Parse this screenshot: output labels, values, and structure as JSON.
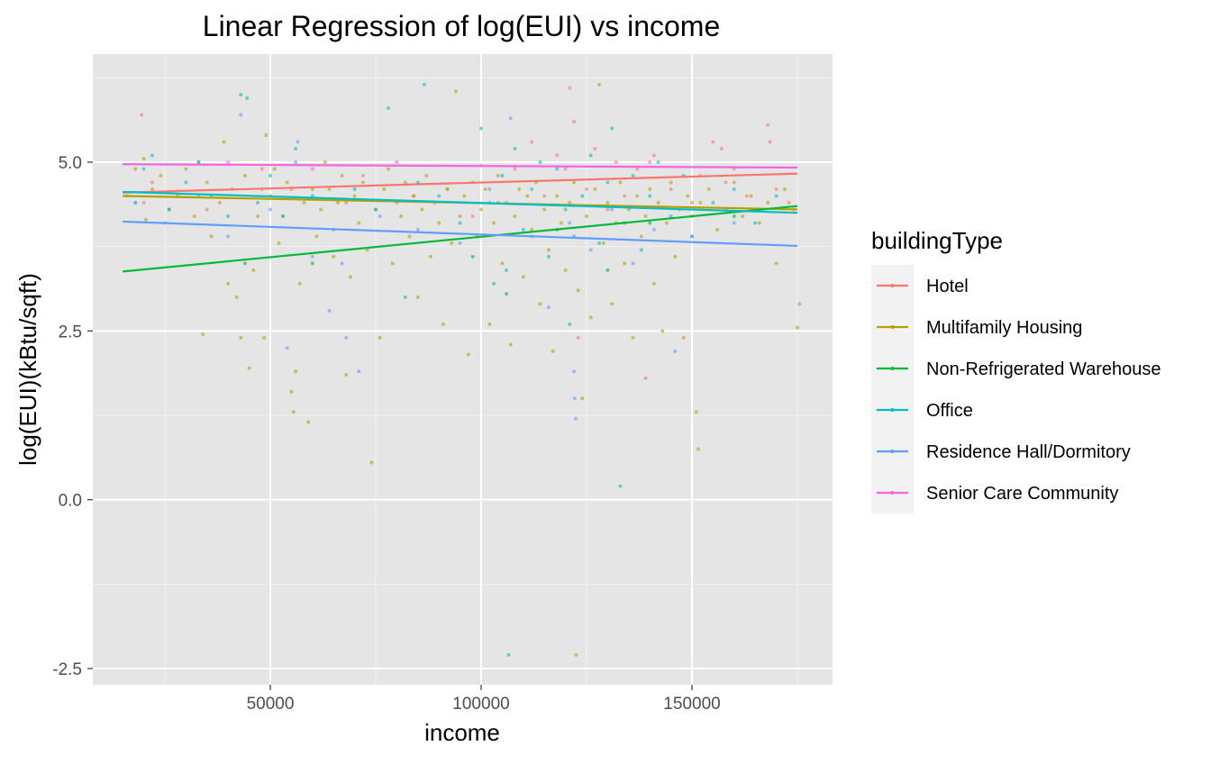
{
  "chart_data": {
    "type": "scatter",
    "title": "Linear Regression of log(EUI) vs income",
    "xlabel": "income",
    "ylabel": "log(EUI)(kBtu/sqft)",
    "xlim": [
      15000,
      175000
    ],
    "ylim": [
      -2.5,
      6.2
    ],
    "x_ticks": [
      50000,
      100000,
      150000
    ],
    "x_tick_labels": [
      "50000",
      "100000",
      "150000"
    ],
    "y_ticks": [
      -2.5,
      0.0,
      2.5,
      5.0
    ],
    "y_tick_labels": [
      "-2.5",
      "0.0",
      "2.5",
      "5.0"
    ],
    "grid": true,
    "background": "#e5e5e5",
    "legend": {
      "title": "buildingType",
      "position": "right",
      "entries": [
        "Hotel",
        "Multifamily Housing",
        "Non-Refrigerated Warehouse",
        "Office",
        "Residence Hall/Dormitory",
        "Senior Care Community"
      ]
    },
    "series": [
      {
        "name": "Hotel",
        "color": "#F8766D",
        "fit_line": [
          [
            15000,
            4.55
          ],
          [
            175000,
            4.83
          ]
        ],
        "points": [
          [
            19500,
            5.7
          ],
          [
            20000,
            4.4
          ],
          [
            22000,
            4.7
          ],
          [
            35000,
            4.3
          ],
          [
            48000,
            4.9
          ],
          [
            55000,
            4.6
          ],
          [
            68000,
            4.4
          ],
          [
            72000,
            4.8
          ],
          [
            84000,
            4.5
          ],
          [
            92000,
            4.6
          ],
          [
            98000,
            4.2
          ],
          [
            104000,
            4.4
          ],
          [
            108000,
            4.9
          ],
          [
            112000,
            5.3
          ],
          [
            115000,
            4.5
          ],
          [
            118000,
            5.1
          ],
          [
            121000,
            6.1
          ],
          [
            122000,
            5.6
          ],
          [
            123000,
            2.4
          ],
          [
            125000,
            4.6
          ],
          [
            127000,
            5.2
          ],
          [
            130000,
            4.3
          ],
          [
            132000,
            5.0
          ],
          [
            134000,
            4.5
          ],
          [
            137000,
            4.9
          ],
          [
            139000,
            1.8
          ],
          [
            141000,
            5.1
          ],
          [
            145000,
            4.6
          ],
          [
            150000,
            4.4
          ],
          [
            152000,
            4.8
          ],
          [
            155000,
            5.3
          ],
          [
            157000,
            5.2
          ],
          [
            158000,
            4.7
          ],
          [
            160000,
            4.9
          ],
          [
            163000,
            4.5
          ],
          [
            168000,
            5.55
          ],
          [
            168500,
            5.3
          ],
          [
            170000,
            4.6
          ],
          [
            173000,
            4.4
          ]
        ]
      },
      {
        "name": "Multifamily Housing",
        "color": "#B79F00",
        "fit_line": [
          [
            15000,
            4.5
          ],
          [
            175000,
            4.3
          ]
        ],
        "points": [
          [
            16000,
            4.5
          ],
          [
            18000,
            4.9
          ],
          [
            20000,
            5.05
          ],
          [
            20500,
            4.15
          ],
          [
            22000,
            4.6
          ],
          [
            24000,
            4.8
          ],
          [
            26000,
            4.3
          ],
          [
            28000,
            4.5
          ],
          [
            30000,
            4.9
          ],
          [
            32000,
            4.2
          ],
          [
            33000,
            5.0
          ],
          [
            34000,
            2.45
          ],
          [
            35000,
            4.7
          ],
          [
            36000,
            3.9
          ],
          [
            38000,
            4.4
          ],
          [
            39000,
            5.3
          ],
          [
            40000,
            3.2
          ],
          [
            41000,
            4.6
          ],
          [
            42000,
            3.0
          ],
          [
            43000,
            2.4
          ],
          [
            44000,
            4.8
          ],
          [
            45000,
            1.95
          ],
          [
            46000,
            3.4
          ],
          [
            47000,
            4.2
          ],
          [
            48000,
            4.6
          ],
          [
            48500,
            2.4
          ],
          [
            49000,
            5.4
          ],
          [
            50000,
            4.5
          ],
          [
            51000,
            4.9
          ],
          [
            52000,
            3.8
          ],
          [
            53000,
            4.2
          ],
          [
            54000,
            4.7
          ],
          [
            55000,
            1.6
          ],
          [
            55500,
            1.3
          ],
          [
            56000,
            1.9
          ],
          [
            57000,
            3.2
          ],
          [
            58000,
            4.4
          ],
          [
            59000,
            1.15
          ],
          [
            60000,
            4.6
          ],
          [
            61000,
            3.9
          ],
          [
            62000,
            4.3
          ],
          [
            63000,
            5.0
          ],
          [
            64000,
            4.6
          ],
          [
            65000,
            3.6
          ],
          [
            66000,
            4.4
          ],
          [
            67000,
            4.8
          ],
          [
            68000,
            1.85
          ],
          [
            69000,
            3.3
          ],
          [
            70000,
            4.5
          ],
          [
            71000,
            4.1
          ],
          [
            72000,
            4.7
          ],
          [
            73000,
            3.7
          ],
          [
            74000,
            0.55
          ],
          [
            75000,
            4.3
          ],
          [
            76000,
            2.4
          ],
          [
            77000,
            4.6
          ],
          [
            78000,
            4.9
          ],
          [
            79000,
            3.5
          ],
          [
            80000,
            4.4
          ],
          [
            81000,
            4.2
          ],
          [
            82000,
            4.7
          ],
          [
            83000,
            3.9
          ],
          [
            84000,
            4.5
          ],
          [
            85000,
            3.0
          ],
          [
            86000,
            4.3
          ],
          [
            87000,
            4.8
          ],
          [
            88000,
            3.6
          ],
          [
            89000,
            4.4
          ],
          [
            90000,
            4.1
          ],
          [
            91000,
            2.6
          ],
          [
            92000,
            4.6
          ],
          [
            93000,
            3.8
          ],
          [
            94000,
            6.05
          ],
          [
            95000,
            4.2
          ],
          [
            96000,
            4.5
          ],
          [
            97000,
            2.15
          ],
          [
            98000,
            4.7
          ],
          [
            99000,
            3.9
          ],
          [
            100000,
            4.3
          ],
          [
            101000,
            4.6
          ],
          [
            102000,
            2.6
          ],
          [
            103000,
            4.1
          ],
          [
            104000,
            4.8
          ],
          [
            105000,
            3.5
          ],
          [
            106000,
            4.4
          ],
          [
            107000,
            2.3
          ],
          [
            108000,
            4.2
          ],
          [
            109000,
            4.6
          ],
          [
            110000,
            3.3
          ],
          [
            111000,
            4.5
          ],
          [
            112000,
            4.0
          ],
          [
            113000,
            4.7
          ],
          [
            114000,
            2.9
          ],
          [
            115000,
            4.3
          ],
          [
            116000,
            3.7
          ],
          [
            117000,
            2.2
          ],
          [
            118000,
            4.5
          ],
          [
            119000,
            4.1
          ],
          [
            120000,
            3.4
          ],
          [
            121000,
            4.4
          ],
          [
            122000,
            4.7
          ],
          [
            122500,
            -2.3
          ],
          [
            123000,
            3.1
          ],
          [
            124000,
            1.5
          ],
          [
            125000,
            4.2
          ],
          [
            126000,
            2.7
          ],
          [
            127000,
            4.6
          ],
          [
            128000,
            6.15
          ],
          [
            129000,
            3.8
          ],
          [
            130000,
            4.4
          ],
          [
            131000,
            2.9
          ],
          [
            132000,
            4.1
          ],
          [
            133000,
            4.7
          ],
          [
            134000,
            3.5
          ],
          [
            135000,
            4.3
          ],
          [
            136000,
            2.4
          ],
          [
            137000,
            4.5
          ],
          [
            138000,
            3.9
          ],
          [
            139000,
            4.2
          ],
          [
            140000,
            4.6
          ],
          [
            141000,
            3.2
          ],
          [
            142000,
            4.4
          ],
          [
            143000,
            2.5
          ],
          [
            144000,
            4.1
          ],
          [
            145000,
            4.7
          ],
          [
            146000,
            3.6
          ],
          [
            147000,
            4.3
          ],
          [
            148000,
            2.4
          ],
          [
            149000,
            4.5
          ],
          [
            150000,
            4.2
          ],
          [
            151000,
            1.3
          ],
          [
            151500,
            0.75
          ],
          [
            152000,
            4.4
          ],
          [
            154000,
            4.6
          ],
          [
            156000,
            4.0
          ],
          [
            158000,
            4.3
          ],
          [
            160000,
            4.7
          ],
          [
            162000,
            4.2
          ],
          [
            164000,
            4.5
          ],
          [
            166000,
            4.1
          ],
          [
            168000,
            4.4
          ],
          [
            170000,
            3.5
          ],
          [
            172000,
            4.6
          ],
          [
            174000,
            4.3
          ],
          [
            175000,
            2.55
          ],
          [
            175500,
            2.9
          ]
        ]
      },
      {
        "name": "Non-Refrigerated Warehouse",
        "color": "#00BA38",
        "fit_line": [
          [
            15000,
            3.38
          ],
          [
            175000,
            4.35
          ]
        ],
        "points": [
          [
            44000,
            3.5
          ],
          [
            60000,
            3.5
          ],
          [
            98000,
            3.6
          ],
          [
            106000,
            3.05
          ],
          [
            118000,
            4.0
          ],
          [
            130000,
            3.4
          ],
          [
            140000,
            4.1
          ],
          [
            160000,
            4.2
          ]
        ]
      },
      {
        "name": "Office",
        "color": "#00BFC4",
        "fit_line": [
          [
            15000,
            4.56
          ],
          [
            175000,
            4.25
          ]
        ],
        "points": [
          [
            18000,
            4.4
          ],
          [
            20000,
            4.9
          ],
          [
            22000,
            5.1
          ],
          [
            26000,
            4.3
          ],
          [
            30000,
            4.7
          ],
          [
            33000,
            5.0
          ],
          [
            36000,
            4.5
          ],
          [
            40000,
            4.2
          ],
          [
            43000,
            6.0
          ],
          [
            44500,
            5.95
          ],
          [
            47000,
            4.4
          ],
          [
            50000,
            4.8
          ],
          [
            53000,
            4.2
          ],
          [
            56000,
            5.2
          ],
          [
            60000,
            4.5
          ],
          [
            65000,
            4.0
          ],
          [
            70000,
            4.6
          ],
          [
            75000,
            4.3
          ],
          [
            78000,
            5.8
          ],
          [
            82000,
            3.0
          ],
          [
            85000,
            4.7
          ],
          [
            86500,
            6.15
          ],
          [
            90000,
            4.5
          ],
          [
            95000,
            4.1
          ],
          [
            100000,
            5.5
          ],
          [
            102000,
            4.4
          ],
          [
            103000,
            3.2
          ],
          [
            105000,
            4.8
          ],
          [
            106000,
            3.4
          ],
          [
            106500,
            -2.3
          ],
          [
            108000,
            5.2
          ],
          [
            110000,
            4.0
          ],
          [
            112000,
            4.6
          ],
          [
            114000,
            5.0
          ],
          [
            116000,
            3.6
          ],
          [
            118000,
            4.9
          ],
          [
            120000,
            4.3
          ],
          [
            121000,
            2.6
          ],
          [
            122000,
            3.9
          ],
          [
            124000,
            4.5
          ],
          [
            126000,
            5.1
          ],
          [
            128000,
            3.8
          ],
          [
            130000,
            4.7
          ],
          [
            131000,
            5.5
          ],
          [
            133000,
            0.2
          ],
          [
            134000,
            4.1
          ],
          [
            136000,
            4.8
          ],
          [
            138000,
            3.7
          ],
          [
            140000,
            4.5
          ],
          [
            142000,
            5.0
          ],
          [
            145000,
            4.2
          ],
          [
            148000,
            4.8
          ],
          [
            150000,
            3.9
          ],
          [
            155000,
            4.4
          ],
          [
            160000,
            4.6
          ],
          [
            165000,
            4.1
          ],
          [
            170000,
            4.5
          ]
        ]
      },
      {
        "name": "Residence Hall/Dormitory",
        "color": "#619CFF",
        "fit_line": [
          [
            15000,
            4.12
          ],
          [
            175000,
            3.76
          ]
        ],
        "points": [
          [
            18000,
            4.4
          ],
          [
            25000,
            4.1
          ],
          [
            33000,
            4.5
          ],
          [
            40000,
            3.9
          ],
          [
            43000,
            5.7
          ],
          [
            50000,
            4.3
          ],
          [
            54000,
            2.25
          ],
          [
            56000,
            5.0
          ],
          [
            56500,
            5.3
          ],
          [
            60000,
            3.6
          ],
          [
            64000,
            2.8
          ],
          [
            67000,
            3.5
          ],
          [
            68000,
            2.4
          ],
          [
            71000,
            1.9
          ],
          [
            76000,
            4.2
          ],
          [
            85000,
            4.0
          ],
          [
            95000,
            3.8
          ],
          [
            102000,
            4.6
          ],
          [
            107000,
            5.65
          ],
          [
            112000,
            3.9
          ],
          [
            116000,
            2.85
          ],
          [
            121000,
            4.1
          ],
          [
            122000,
            1.9
          ],
          [
            122200,
            1.5
          ],
          [
            122400,
            1.2
          ],
          [
            126000,
            3.7
          ],
          [
            131000,
            4.3
          ],
          [
            136000,
            3.5
          ],
          [
            141000,
            4.0
          ],
          [
            146000,
            2.2
          ],
          [
            150000,
            3.9
          ],
          [
            160000,
            4.1
          ]
        ]
      },
      {
        "name": "Senior Care Community",
        "color": "#F564E3",
        "fit_line": [
          [
            15000,
            4.97
          ],
          [
            175000,
            4.92
          ]
        ],
        "points": [
          [
            40000,
            5.0
          ],
          [
            60000,
            4.9
          ],
          [
            80000,
            5.0
          ],
          [
            100000,
            4.95
          ],
          [
            120000,
            4.9
          ],
          [
            140000,
            5.0
          ]
        ]
      }
    ]
  }
}
